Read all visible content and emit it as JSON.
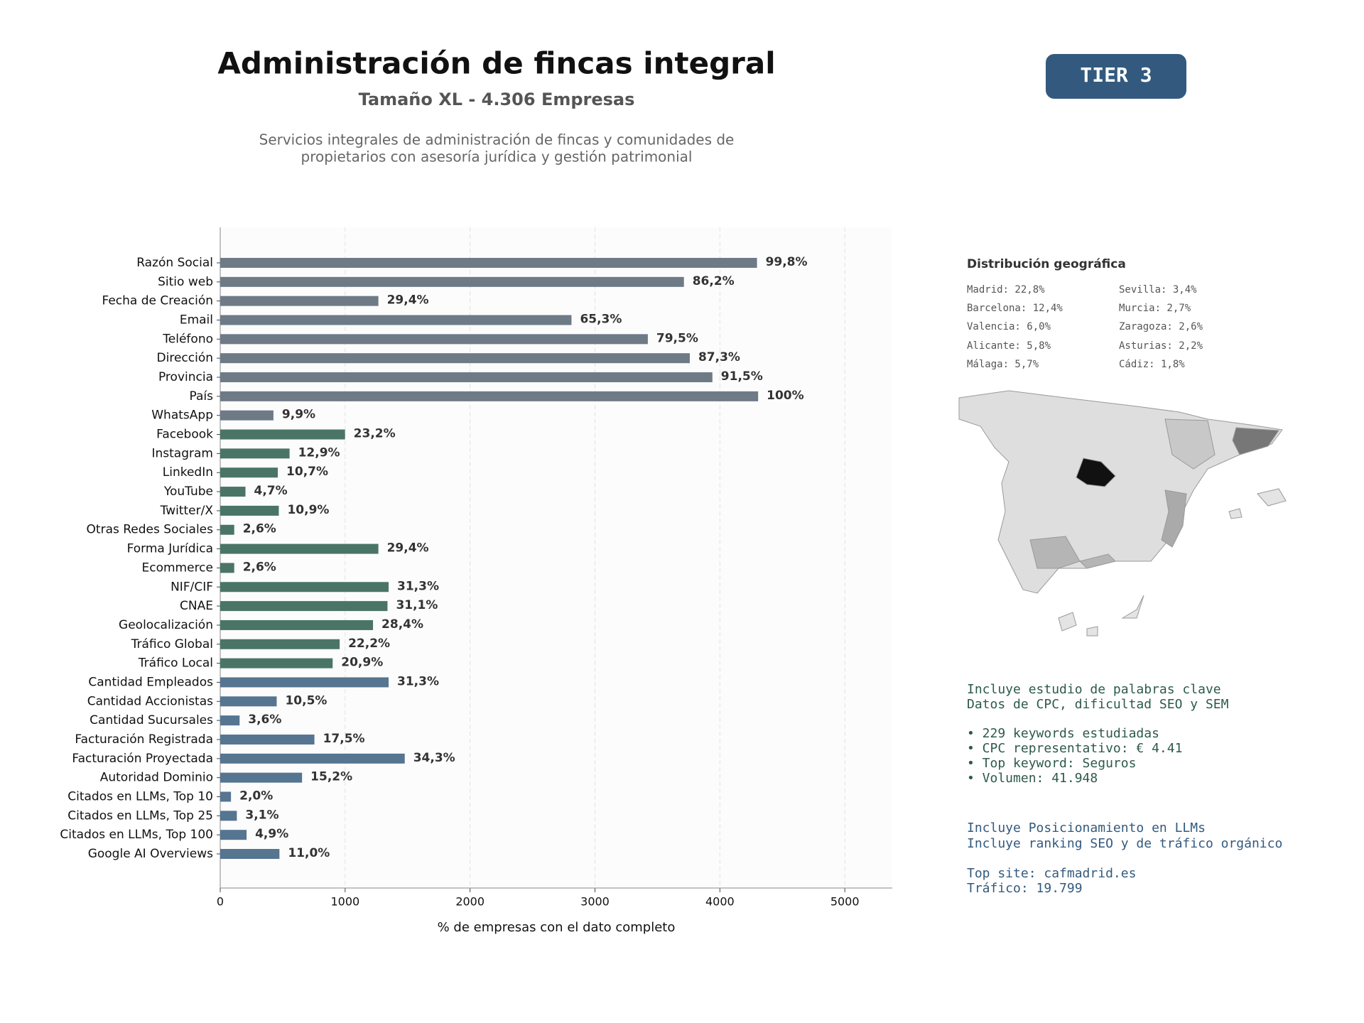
{
  "title": "Administración de fincas integral",
  "subtitle": "Tamaño XL - 4.306 Empresas",
  "description": [
    "Servicios integrales de administración de fincas y comunidades de",
    "propietarios con asesoría jurídica y gestión patrimonial"
  ],
  "badge": "TIER 3",
  "chart_data": {
    "type": "barh",
    "categories": [
      "Razón Social",
      "Sitio web",
      "Fecha de Creación",
      "Email",
      "Teléfono",
      "Dirección",
      "Provincia",
      "País",
      "WhatsApp",
      "Facebook",
      "Instagram",
      "LinkedIn",
      "YouTube",
      "Twitter/X",
      "Otras Redes Sociales",
      "Forma Jurídica",
      "Ecommerce",
      "NIF/CIF",
      "CNAE",
      "Geolocalización",
      "Tráfico Global",
      "Tráfico Local",
      "Cantidad Empleados",
      "Cantidad Accionistas",
      "Cantidad Sucursales",
      "Facturación Registrada",
      "Facturación Proyectada",
      "Autoridad Dominio",
      "Citados en LLMs, Top 10",
      "Citados en LLMs, Top 25",
      "Citados en LLMs, Top 100",
      "Google AI Overviews"
    ],
    "values": [
      4297,
      3712,
      1266,
      2812,
      3423,
      3759,
      3940,
      4306,
      426,
      999,
      555,
      461,
      202,
      469,
      112,
      1266,
      112,
      1348,
      1339,
      1223,
      956,
      900,
      1348,
      452,
      155,
      754,
      1477,
      655,
      86,
      133,
      211,
      474
    ],
    "value_labels": [
      "99,8%",
      "86,2%",
      "29,4%",
      "65,3%",
      "79,5%",
      "87,3%",
      "91,5%",
      "100%",
      "9,9%",
      "23,2%",
      "12,9%",
      "10,7%",
      "4,7%",
      "10,9%",
      "2,6%",
      "29,4%",
      "2,6%",
      "31,3%",
      "31,1%",
      "28,4%",
      "22,2%",
      "20,9%",
      "31,3%",
      "10,5%",
      "3,6%",
      "17,5%",
      "34,3%",
      "15,2%",
      "2,0%",
      "3,1%",
      "4,9%",
      "11,0%"
    ],
    "colors": [
      "#6e7a86",
      "#6e7a86",
      "#6e7a86",
      "#6e7a86",
      "#6e7a86",
      "#6e7a86",
      "#6e7a86",
      "#6e7a86",
      "#6e7a86",
      "#4a7566",
      "#4a7566",
      "#4a7566",
      "#4a7566",
      "#4a7566",
      "#4a7566",
      "#4a7566",
      "#4a7566",
      "#4a7566",
      "#4a7566",
      "#4a7566",
      "#4a7566",
      "#4a7566",
      "#557591",
      "#557591",
      "#557591",
      "#557591",
      "#557591",
      "#557591",
      "#557591",
      "#557591",
      "#557591",
      "#557591"
    ],
    "xlim": [
      0,
      5380
    ],
    "xticks": [
      0,
      1000,
      2000,
      3000,
      4000,
      5000
    ],
    "xlabel": "% de empresas con el dato completo",
    "grid": true
  },
  "geo": {
    "title": "Distribución geográfica",
    "left": [
      "Madrid: 22,8%",
      "Barcelona: 12,4%",
      "Valencia: 6,0%",
      "Alicante: 5,8%",
      "Málaga: 5,7%"
    ],
    "right": [
      "Sevilla: 3,4%",
      "Murcia: 2,7%",
      "Zaragoza: 2,6%",
      "Asturias: 2,2%",
      "Cádiz: 1,8%"
    ]
  },
  "seo": {
    "intro": [
      "Incluye estudio de palabras clave",
      "Datos de CPC, dificultad SEO y SEM"
    ],
    "bullets": [
      "• 229 keywords estudiadas",
      "• CPC representativo: € 4.41",
      "• Top keyword: Seguros",
      "• Volumen: 41.948"
    ]
  },
  "llm": {
    "lines": [
      "Incluye Posicionamiento en LLMs",
      "Incluye ranking SEO y de tráfico orgánico"
    ],
    "top": [
      "Top site: cafmadrid.es",
      "Tráfico: 19.799"
    ]
  }
}
